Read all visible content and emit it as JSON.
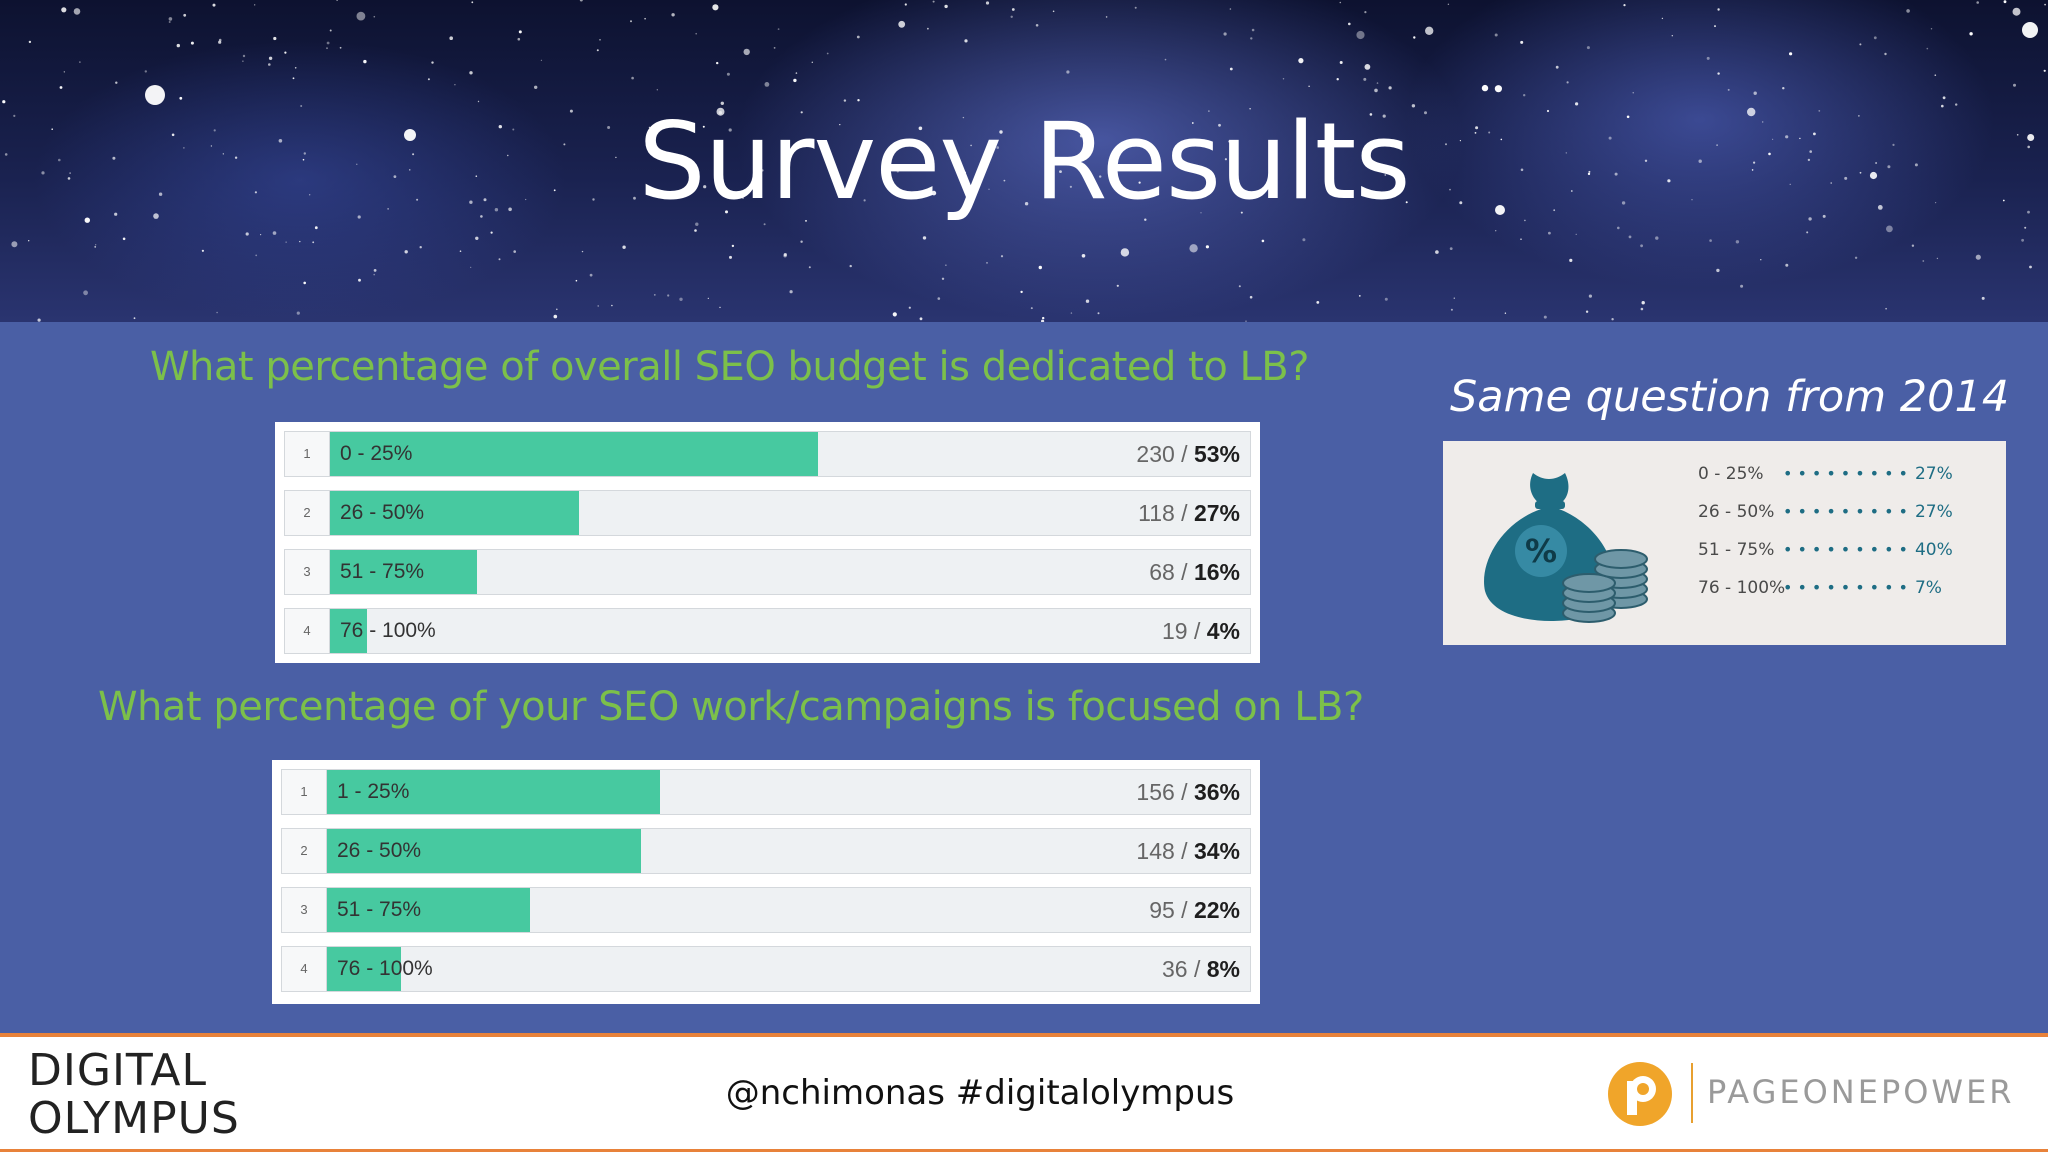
{
  "slide": {
    "title": "Survey Results",
    "question_1": "What percentage of overall SEO budget is dedicated to LB?",
    "question_2": "What percentage of your SEO work/campaigns is focused on LB?",
    "side_title": "Same question from 2014",
    "footer_handle": "@nchimonas #digitalolympus",
    "logo_left": {
      "line1": "DIGITAL",
      "line2": "OLYMPUS"
    },
    "logo_right": "PAGEONEPOWER"
  },
  "colors": {
    "background": "#4a5fa5",
    "question_text": "#7cc04a",
    "bar_fill": "#47c9a0",
    "footer_accent": "#e8823a",
    "bag_color": "#1e6d84"
  },
  "chart_data": [
    {
      "type": "bar",
      "orientation": "horizontal",
      "title": "What percentage of overall SEO budget is dedicated to LB?",
      "indices": [
        "1",
        "2",
        "3",
        "4"
      ],
      "categories": [
        "0 - 25%",
        "26 - 50%",
        "51 - 75%",
        "76 - 100%"
      ],
      "counts": [
        "230",
        "118",
        "68",
        "19"
      ],
      "percents": [
        "53%",
        "27%",
        "16%",
        "4%"
      ],
      "values": [
        53,
        27,
        16,
        4
      ]
    },
    {
      "type": "bar",
      "orientation": "horizontal",
      "title": "What percentage of your SEO work/campaigns is focused on LB?",
      "indices": [
        "1",
        "2",
        "3",
        "4"
      ],
      "categories": [
        "1 - 25%",
        "26 - 50%",
        "51 - 75%",
        "76 - 100%"
      ],
      "counts": [
        "156",
        "148",
        "95",
        "36"
      ],
      "percents": [
        "36%",
        "34%",
        "22%",
        "8%"
      ],
      "values": [
        36,
        34,
        22,
        8
      ]
    },
    {
      "type": "table",
      "title": "Same question from 2014",
      "categories": [
        "0 - 25%",
        "26 - 50%",
        "51 - 75%",
        "76 - 100%"
      ],
      "value_labels": [
        "27%",
        "27%",
        "40%",
        "7%"
      ],
      "values": [
        27,
        27,
        40,
        7
      ]
    }
  ]
}
